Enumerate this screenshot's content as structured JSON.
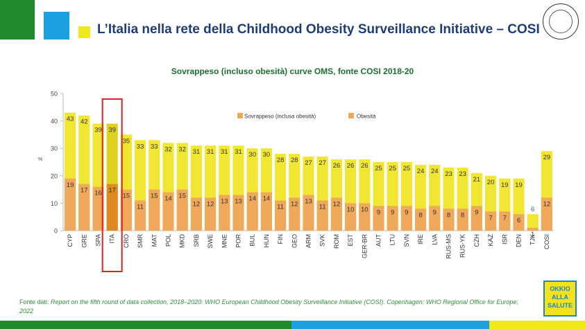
{
  "slide": {
    "title": "L’Italia nella rete della Childhood Obesity Surveillance Initiative – COSI",
    "source_prefix": "Fonte dati: ",
    "source_text": "Report on the fifth round of data collection, 2018–2020: WHO European Childhood Obesity Surveillance Initiative (COSI). Copenhagen: WHO Regional Office for Europe; 2022",
    "logo_text": "OKKIO\nALLA\nSALUTE",
    "seal_icon": "istituto-superiore-di-sanita-seal-icon"
  },
  "colors": {
    "overweight": "#f1e732",
    "obesity": "#f0a85a",
    "ita_overweight": "#ded21f",
    "ita_obesity": "#de8a20",
    "highlight_box": "#e02020",
    "title": "#1d3c78",
    "chart_title": "#1d6f2e",
    "green": "#1f8a2c",
    "blue": "#1ba0e0",
    "yellow": "#f1e81a"
  },
  "chart_data": {
    "type": "bar",
    "title": "Sovrappeso (incluso obesità) curve OMS, fonte COSI 2018-20",
    "xlabel": "",
    "ylabel": "%",
    "ylim": [
      0,
      50
    ],
    "yticks": [
      0,
      10,
      20,
      30,
      40,
      50
    ],
    "highlight": "ITA",
    "categories": [
      "CYP",
      "GRE",
      "SPA",
      "ITA",
      "CRO",
      "SMR",
      "MAT",
      "POL",
      "MKD",
      "SRB",
      "SWE",
      "MNE",
      "POR",
      "BUL",
      "HUN",
      "FIN",
      "GEO",
      "ARM",
      "SVK",
      "ROM",
      "EST",
      "GER-BR",
      "AUT",
      "LTU",
      "SVN",
      "IRE",
      "LVA",
      "RUS-MS",
      "RUS-YK",
      "CZH",
      "KAZ",
      "ISR",
      "DEN",
      "TJK",
      "COSI"
    ],
    "series": [
      {
        "name": "Sovrappeso (inclusa obesità)",
        "values": [
          43,
          42,
          39,
          39,
          35,
          33,
          33,
          32,
          32,
          31,
          31,
          31,
          31,
          30,
          30,
          28,
          28,
          27,
          27,
          26,
          26,
          26,
          25,
          25,
          25,
          24,
          24,
          23,
          23,
          21,
          20,
          19,
          19,
          6,
          29
        ]
      },
      {
        "name": "Obesità",
        "values": [
          19,
          17,
          16,
          17,
          15,
          11,
          15,
          14,
          15,
          12,
          12,
          13,
          13,
          14,
          14,
          11,
          12,
          13,
          11,
          12,
          10,
          10,
          9,
          9,
          9,
          8,
          9,
          8,
          8,
          9,
          7,
          7,
          6,
          1,
          12
        ]
      }
    ]
  }
}
